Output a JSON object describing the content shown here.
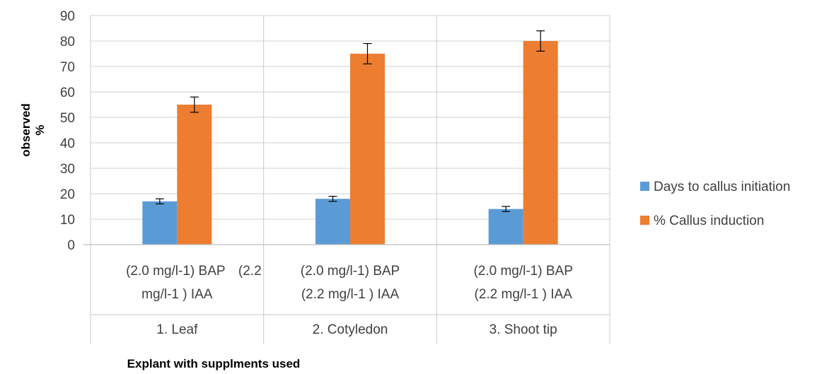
{
  "chart_data": {
    "type": "bar",
    "title": "",
    "categories": [
      {
        "label_lines": [
          "(2.0 mg/l-1) BAP",
          "(2.2",
          "mg/l-1 ) IAA"
        ],
        "group": "1.  Leaf"
      },
      {
        "label_lines": [
          "(2.0 mg/l-1) BAP",
          "(2.2 mg/l-1 ) IAA"
        ],
        "group": "2.  Cotyledon"
      },
      {
        "label_lines": [
          "(2.0 mg/l-1) BAP",
          "(2.2 mg/l-1 ) IAA"
        ],
        "group": "3.  Shoot tip"
      }
    ],
    "series": [
      {
        "name": "Days to callus initiation",
        "color": "#5b9bd5",
        "values": [
          17,
          18,
          14
        ],
        "errors": [
          1,
          1,
          1
        ]
      },
      {
        "name": "% Callus induction",
        "color": "#ed7d31",
        "values": [
          55,
          75,
          80
        ],
        "errors": [
          3,
          4,
          4
        ]
      }
    ],
    "xlabel": "Explant with supplments used",
    "ylabel_lines": [
      "observed",
      "%"
    ],
    "ylim": [
      0,
      90
    ],
    "yticks": [
      0,
      10,
      20,
      30,
      40,
      50,
      60,
      70,
      80,
      90
    ],
    "grid": true,
    "legend_position": "right"
  }
}
